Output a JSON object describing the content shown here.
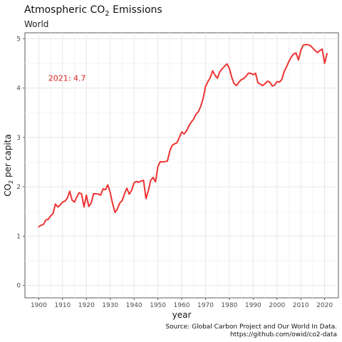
{
  "chart_data": {
    "type": "line",
    "title_main": "Atmospheric CO",
    "title_sub_script": "2",
    "title_tail": " Emissions",
    "subtitle": "World",
    "xlabel": "year",
    "ylabel_main": "CO",
    "ylabel_sub_script": "2",
    "ylabel_tail": " per capita",
    "xlim": [
      1894.2,
      2025.8
    ],
    "ylim": [
      -0.25,
      5.12
    ],
    "x_ticks": [
      1900,
      1910,
      1920,
      1930,
      1940,
      1950,
      1960,
      1970,
      1980,
      1990,
      2000,
      2010,
      2020
    ],
    "y_ticks": [
      0,
      1,
      2,
      3,
      4,
      5
    ],
    "grid": true,
    "line_color": "#ee3333",
    "annotation": {
      "text": "2021: 4.7",
      "x": 1904,
      "y": 4.2,
      "color": "#dd2222"
    },
    "caption_line1": "Source: Global Carbon Project and Our World In Data.",
    "caption_line2": "https://github.com/owid/co2-data",
    "series": [
      {
        "x": [
          1900,
          1901,
          1902,
          1903,
          1904,
          1905,
          1906,
          1907,
          1908,
          1909,
          1910,
          1911,
          1912,
          1913,
          1914,
          1915,
          1916,
          1917,
          1918,
          1919,
          1920,
          1921,
          1922,
          1923,
          1924,
          1925,
          1926,
          1927,
          1928,
          1929,
          1930,
          1931,
          1932,
          1933,
          1934,
          1935,
          1936,
          1937,
          1938,
          1939,
          1940,
          1941,
          1942,
          1943,
          1944,
          1945,
          1946,
          1947,
          1948,
          1949,
          1950,
          1951,
          1952,
          1953,
          1954,
          1955,
          1956,
          1957,
          1958,
          1959,
          1960,
          1961,
          1962,
          1963,
          1964,
          1965,
          1966,
          1967,
          1968,
          1969,
          1970,
          1971,
          1972,
          1973,
          1974,
          1975,
          1976,
          1977,
          1978,
          1979,
          1980,
          1981,
          1982,
          1983,
          1984,
          1985,
          1986,
          1987,
          1988,
          1989,
          1990,
          1991,
          1992,
          1993,
          1994,
          1995,
          1996,
          1997,
          1998,
          1999,
          2000,
          2001,
          2002,
          2003,
          2004,
          2005,
          2006,
          2007,
          2008,
          2009,
          2010,
          2011,
          2012,
          2013,
          2014,
          2015,
          2016,
          2017,
          2018,
          2019,
          2020,
          2021
        ],
        "y": [
          1.19,
          1.22,
          1.24,
          1.33,
          1.34,
          1.41,
          1.46,
          1.65,
          1.59,
          1.63,
          1.69,
          1.71,
          1.77,
          1.91,
          1.73,
          1.69,
          1.8,
          1.88,
          1.85,
          1.59,
          1.83,
          1.6,
          1.67,
          1.86,
          1.86,
          1.85,
          1.83,
          1.96,
          1.94,
          2.04,
          1.88,
          1.66,
          1.48,
          1.55,
          1.67,
          1.72,
          1.86,
          1.97,
          1.85,
          1.93,
          2.08,
          2.11,
          2.09,
          2.12,
          2.13,
          1.76,
          1.92,
          2.13,
          2.19,
          2.1,
          2.41,
          2.51,
          2.5,
          2.51,
          2.52,
          2.72,
          2.84,
          2.87,
          2.89,
          3.0,
          3.11,
          3.07,
          3.13,
          3.23,
          3.31,
          3.37,
          3.47,
          3.52,
          3.63,
          3.79,
          4.03,
          4.13,
          4.21,
          4.35,
          4.26,
          4.2,
          4.33,
          4.39,
          4.44,
          4.49,
          4.4,
          4.22,
          4.09,
          4.05,
          4.12,
          4.17,
          4.19,
          4.24,
          4.3,
          4.3,
          4.27,
          4.3,
          4.11,
          4.08,
          4.05,
          4.09,
          4.14,
          4.12,
          4.04,
          4.06,
          4.13,
          4.12,
          4.17,
          4.33,
          4.43,
          4.54,
          4.63,
          4.69,
          4.71,
          4.57,
          4.76,
          4.87,
          4.88,
          4.88,
          4.86,
          4.81,
          4.76,
          4.72,
          4.76,
          4.79,
          4.5,
          4.7
        ]
      }
    ]
  }
}
